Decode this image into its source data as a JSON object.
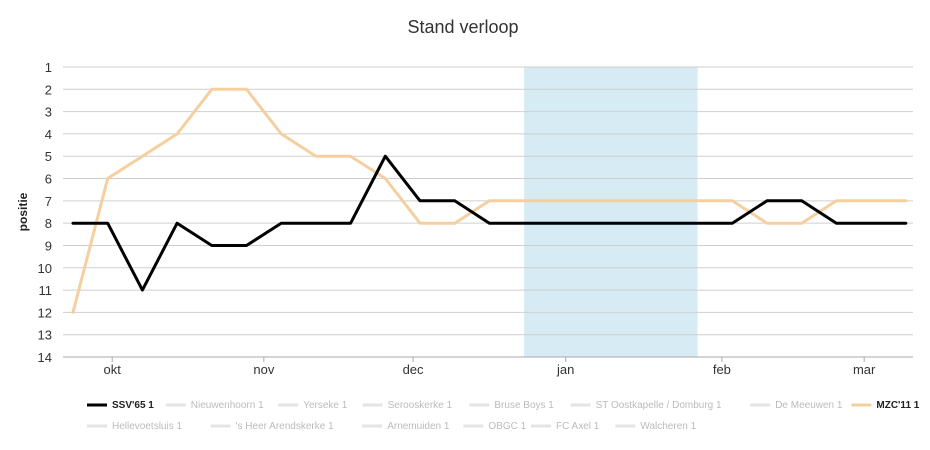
{
  "chart_data": {
    "type": "line",
    "title": "Stand verloop",
    "ylabel": "positie",
    "ylim": [
      1,
      14
    ],
    "y_inverted": true,
    "y_ticks": [
      "1",
      "2",
      "3",
      "4",
      "5",
      "6",
      "7",
      "8",
      "9",
      "10",
      "11",
      "12",
      "13",
      "14"
    ],
    "x_tick_labels": [
      "okt",
      "nov",
      "dec",
      "jan",
      "feb",
      "mar"
    ],
    "highlight_band": {
      "from_round": 13,
      "to_round": 18,
      "color": "#d7ebf5"
    },
    "grid": true,
    "legend_position": "bottom",
    "rounds": 25,
    "series": [
      {
        "name": "SSV'65 1",
        "color": "#000000",
        "values": [
          8,
          8,
          11,
          8,
          9,
          9,
          8,
          8,
          8,
          5,
          7,
          7,
          8,
          8,
          8,
          8,
          8,
          8,
          8,
          8,
          7,
          7,
          8,
          8,
          8
        ]
      },
      {
        "name": "Nieuwenhoorn 1",
        "color": "#e4e4e4",
        "values": []
      },
      {
        "name": "Yerseke 1",
        "color": "#e4e4e4",
        "values": []
      },
      {
        "name": "Serooskerke 1",
        "color": "#e4e4e4",
        "values": []
      },
      {
        "name": "Bruse Boys 1",
        "color": "#e4e4e4",
        "values": []
      },
      {
        "name": "ST Oostkapelle / Domburg 1",
        "color": "#e4e4e4",
        "values": []
      },
      {
        "name": "De Meeuwen 1",
        "color": "#e4e4e4",
        "values": []
      },
      {
        "name": "MZC'11 1",
        "color": "#f5cf9f",
        "values": [
          12,
          6,
          5,
          4,
          2,
          2,
          4,
          5,
          5,
          6,
          8,
          8,
          7,
          7,
          7,
          7,
          7,
          7,
          7,
          7,
          8,
          8,
          7,
          7,
          7
        ]
      },
      {
        "name": "Hellevoetsluis 1",
        "color": "#e4e4e4",
        "values": []
      },
      {
        "name": "'s Heer Arendskerke 1",
        "color": "#e4e4e4",
        "values": []
      },
      {
        "name": "Arnemuiden 1",
        "color": "#e4e4e4",
        "values": []
      },
      {
        "name": "OBGC 1",
        "color": "#e4e4e4",
        "values": []
      },
      {
        "name": "FC Axel 1",
        "color": "#e4e4e4",
        "values": []
      },
      {
        "name": "Walcheren 1",
        "color": "#e4e4e4",
        "values": []
      }
    ]
  }
}
